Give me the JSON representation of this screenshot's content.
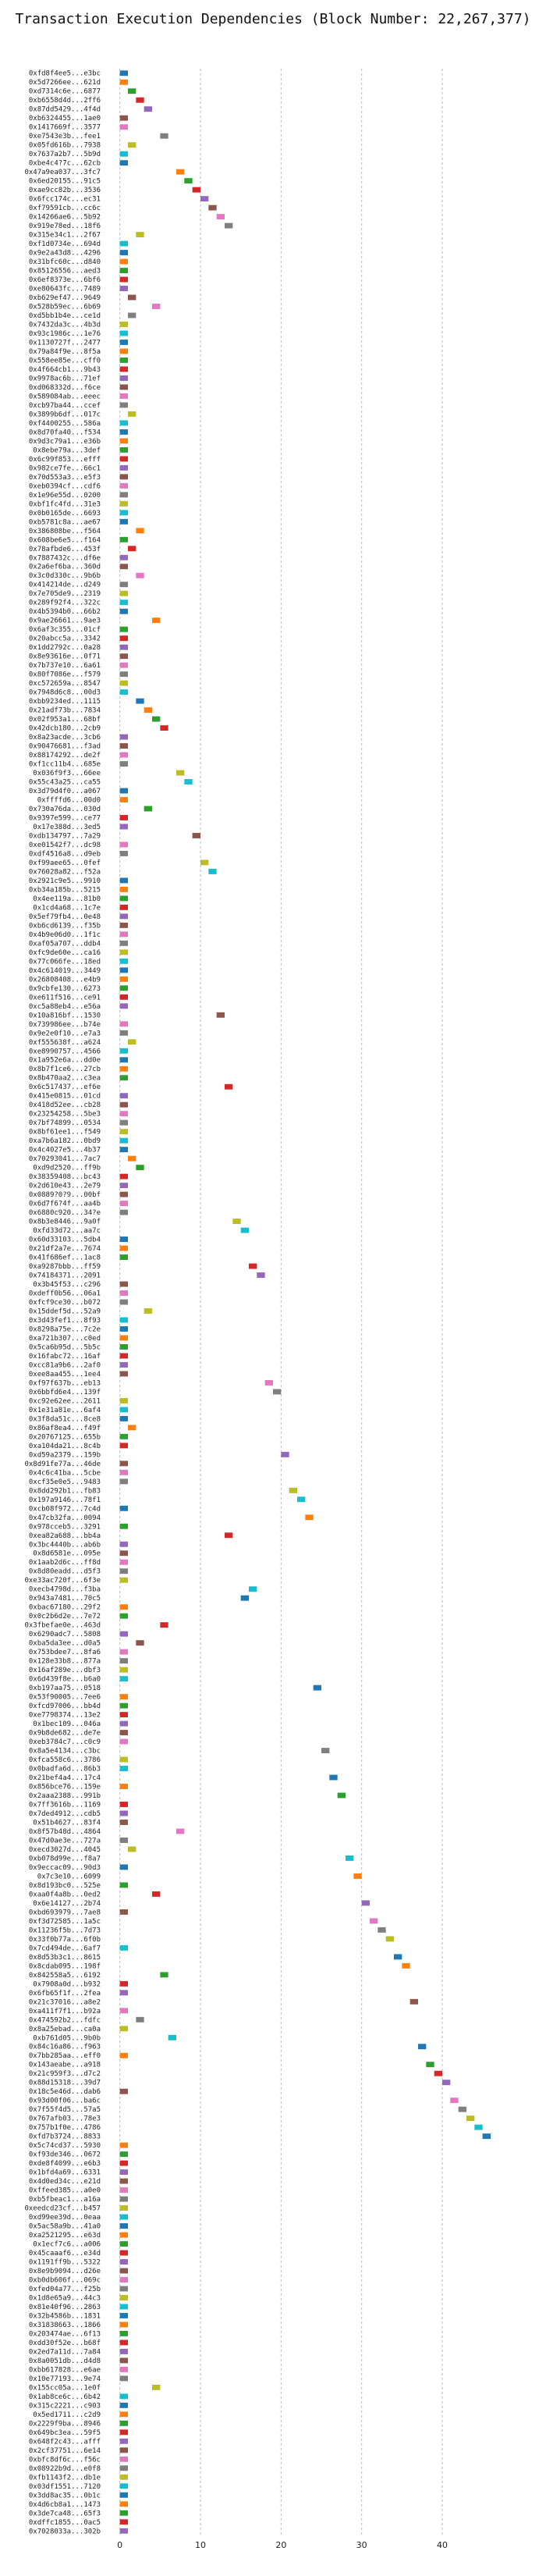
{
  "chart_data": {
    "type": "bar",
    "orientation": "horizontal",
    "title": "Transaction Execution Dependencies (Block Number: 22,267,377)",
    "xlabel": "",
    "ylabel": "",
    "xlim": [
      -2,
      49
    ],
    "xticks": [
      0,
      10,
      20,
      30,
      40
    ],
    "grid": true,
    "colors": [
      "#1f77b4",
      "#ff7f0e",
      "#2ca02c",
      "#d62728",
      "#9467bd",
      "#8c564b",
      "#e377c2",
      "#7f7f7f",
      "#bcbd22",
      "#17becf"
    ],
    "categories": [
      "0xfd8f4ee5...e3bc",
      "0x5d7266ee...621d",
      "0xd7314c6e...6877",
      "0xb6558d4d...2ff6",
      "0x87dd5429...4f4d",
      "0xb6324455...1ae0",
      "0x1417669f...3577",
      "0xe7543e3b...fee1",
      "0x05fd616b...7938",
      "0x7637a2b7...5b9d",
      "0xbe4c4?7c...62cb",
      "0x47a9ea037...3fc7",
      "0x6ed20155...91c5",
      "0xae9cc82b...3536",
      "0x6fcc174c...ec31",
      "0xf79591cb...cc6c",
      "0x14266ae6...5b92",
      "0x919e78ed...18f6",
      "0x315e34c1...2f67",
      "0xf1d0734e...694d",
      "0x9e2a43d8...4296",
      "0x31bfc60c...d840",
      "0x85126556...aed3",
      "0x6ef8373e...6bf6",
      "0xe80643fc...7489",
      "0xb629ef47...9649",
      "0x528b59ec...6b69",
      "0xd5bb1b4e...ce1d",
      "0x7432da3c...4b3d",
      "0x93c1986c...1e76",
      "0x1130727f...2477",
      "0x79a84f9e...8f5a",
      "0x558ee85e...cff0",
      "0x4f664cb1...9b43",
      "0x9978ac6b...71ef",
      "0xd068332d...f6ce",
      "0x589084ab...eeec",
      "0xcb97ba44...ccef",
      "0x3899b6df...017c",
      "0xf4400255...586a",
      "0x8d70fa40...f534",
      "0x9d3c79a1...e36b",
      "0x8ebe79a...3def",
      "0x6c99f853...efff",
      "0x982ce7fe...66c1",
      "0x70d553a3...e5f3",
      "0xeb0394cf...cdf6",
      "0x1e96e55d...0200",
      "0xbf1fc4fd...31e3",
      "0x0b0165de...6693",
      "0xb5781c8a...ae67",
      "0x386808be...f564",
      "0x608be6e5...f164",
      "0x78afbde6...453f",
      "0x7887432c...df6e",
      "0x2a6ef6ba...360d",
      "0x3c0d330c...9b6b",
      "0x414214de...d249",
      "0x7e705de9...2319",
      "0x289f92f4...322c",
      "0x4b5394b0...66b2",
      "0x9ae26661...9ae3",
      "0x6af3c355...01cf",
      "0x20abcc5a...3342",
      "0x1dd2792c...0a28",
      "0x8e93616e...0f71",
      "0x7b737e10...6a61",
      "0x80f7086e...f579",
      "0xc572659a...8547",
      "0x7948d6c8...00d3",
      "0xbb9234ed...1115",
      "0x21adf73b...7834",
      "0x02f953a1...68bf",
      "0x42dcb180...2cb9",
      "0x8a23acde...3cb6",
      "0x90476681...f3ad",
      "0x88174292...de2f",
      "0xf1cc11b4...685e",
      "0x036f9f3...66ee",
      "0x55c43a25...ca55",
      "0x3d79d4f0...a067",
      "0xffffd6...00d0",
      "0x730a76da...030d",
      "0x9397e599...ce77",
      "0x17e388d...3ed5",
      "0xdb134797...7a29",
      "0xe01542f7...dc98",
      "0xdf4516a8...d9eb",
      "0xf99aee65...0fef",
      "0x76028a82...f52a",
      "0x2921c9e5...9910",
      "0xb34a185b...5215",
      "0x4ee119a...81b0",
      "0x1cd4a68...1c7e",
      "0x5ef79fb4...0e48",
      "0xb6cd6139...f35b",
      "0x4b9e06d0...1f1c",
      "0xaf05a707...ddb4",
      "0xfc9de60e...ca16",
      "0x77c066fe...18ed",
      "0x4c614019...3449",
      "0x26808408...e4b9",
      "0x9cbfe130...6273",
      "0xe611f516...ce91",
      "0xc5a88eb4...e56a",
      "0x10a816bf...1530",
      "0x739986ee...b74e",
      "0x9e2e0f10...e7a3",
      "0xf555638f...a624",
      "0xe8990757...4566",
      "0x1a952e6a...dd0e",
      "0x8b7f1ce6...27cb",
      "0x8b470aa2...c3ea",
      "0x6c517437...ef6e",
      "0x415e0815...01cd",
      "0x418d52ee...cb28",
      "0x23254258...5be3",
      "0x7bf74899...0534",
      "0x8bf61ee1...f549",
      "0xa7b6a182...0bd9",
      "0x4c4027e5...4b37",
      "0x70293041...7ac7",
      "0xd9d2520...ff9b",
      "0x38359408...bc43",
      "0x2d610e43...2e79",
      "0x0889?0?9...00bf",
      "0x6d7f6?4f...aa4b",
      "0x6880c920...34?e",
      "0x8b3e8446...9a0f",
      "0xfd33d72...aa7c",
      "0x60d33103...5db4",
      "0x21df2a7e...7674",
      "0x41f686ef...1ac8",
      "0xa9287bbb...ff59",
      "0x74184371...2091",
      "0x3b45f53...c296",
      "0xdeff0b56...06a1",
      "0xfcf9ce30...b072",
      "0x15ddef5d...52a9",
      "0x3d43fef1...8f93",
      "0x8298a75e...7c2e",
      "0xa721b307...c0ed",
      "0x5ca6b95d...5b5c",
      "0x16fabc72...16af",
      "0xcc81a9b6...2af0",
      "0xee8aa455...1ee4",
      "0xf97f637b...eb13",
      "0x6bbfd6e4...139f",
      "0xc92e62ee...2611",
      "0x1e31a81e...6af4",
      "0x3f8da51c...8ce8",
      "0x86af8ea4...f49f",
      "0x20767125...655b",
      "0xa104da21...8c4b",
      "0xd59a2379...159b",
      "0x8d91fe77a...46de",
      "0x4c6c41ba...5cbe",
      "0xcf35e0e5...9483",
      "0x8dd292b1...fb83",
      "0x197a9146...78f1",
      "0xcb08f972...7c4d",
      "0x47cb32fa...0094",
      "0x978cceb5...3291",
      "0xea82a688...bb4a",
      "0x3bc4440b...ab6b",
      "0x8d6581e...095e",
      "0x1aab2d6c...ff8d",
      "0x8d80eadd...d5f3",
      "0xe33ac720f...6f3e",
      "0xecb4798d...f3ba",
      "0x943a7481...70c5",
      "0xbac67180...29f2",
      "0x0c2b6d2e...7e72",
      "0x3fbefae0e...463d",
      "0x6290adc7...5808",
      "0xba5da3ee...d0a5",
      "0x753bdee7...8fa6",
      "0x128e33b8...877a",
      "0x16af289e...dbf3",
      "0x6d439f8e...b6a0",
      "0xb197aa75...0518",
      "0x53f90005...7ee6",
      "0xfcd97006...bb4d",
      "0xe7798374...13e2",
      "0x1bec109...046a",
      "0x9b8de682...de7e",
      "0xeb3784c7...c0c9",
      "0x8a5e4134...c3bc",
      "0xfca558c6...3786",
      "0x0badfa6d...86b3",
      "0x21bef4a4...17c4",
      "0x856bce76...159e",
      "0x2aaa2388...991b",
      "0x7ff3616b...1169",
      "0x7ded4912...cdb5",
      "0x51b4627...83f4",
      "0x8f57b48d...4864",
      "0x47d0ae3e...727a",
      "0xecd3027d...4045",
      "0xb078d99e...f8a7",
      "0x9eccac09...90d3",
      "0x7c3e10...6099",
      "0x8d193bc0...525e",
      "0xaa0f4a8b...0ed2",
      "0x6e14127...2b74",
      "0xbd693979...7ae8",
      "0xf3d72585...1a5c",
      "0x11236f5b...7d73",
      "0x33f0b77a...6f0b",
      "0x7cd494de...6af7",
      "0x8d53b3c1...8615",
      "0x8cdab095...198f",
      "0x842558a5...6192",
      "0x7908a0d...b932",
      "0x6fb65f1f...2fea",
      "0x21c37016...a8e2",
      "0xa411f7f1...b92a",
      "0x474592b2...fdfc",
      "0x8a25ebad...ca0a",
      "0xb761d05...9b0b",
      "0x84c16a86...f963",
      "0x7bb285aa...eff0",
      "0x143aeabe...a918",
      "0x21c959f3...d7c2",
      "0x88d15318...39d7",
      "0x18c5e46d...dab6",
      "0x93d00f06...ba6c",
      "0x7f55f4d5...57a5",
      "0x767afb03...78e3",
      "0x757b1f0e...4786",
      "0xfd7b3724...8833",
      "0x5c74cd37...5930",
      "0xf93de346...0672",
      "0xde8f4099...e6b3",
      "0x1bfd4a69...6331",
      "0x4d0ed34c...e21d",
      "0xffeed385...a0e0",
      "0xb5fbeac1...a16a",
      "0xeedcd23cf...b457",
      "0xd99ee39d...0eaa",
      "0x5ac58a9b...41a0",
      "0xa2521295...e63d",
      "0x1ecf7c6...a006",
      "0x45caaaf6...e34d",
      "0x1191ff9b...5322",
      "0x8e9b9094...d26e",
      "0xb0db606f...069c",
      "0xfed04a77...f25b",
      "0x1d8e65a9...44c3",
      "0x81e40f96...2863",
      "0x32b4586b...1831",
      "0x31838663...1866",
      "0x203474ae...6f13",
      "0xdd30f52e...b68f",
      "0x2ed7a11d...7a84",
      "0x8a0051db...d4d8",
      "0xbb617828...e6ae",
      "0x10e77193...9e74",
      "0x155cc05a...1e0f",
      "0x1ab8ce6c...6b42",
      "0x315c2221...c903",
      "0x5ed1711...c2d9",
      "0x2229f9ba...8946",
      "0x649bc3ea...59f5",
      "0x648f2c43...afff",
      "0x2cf37751...6e14",
      "0xbfc8df6c...f56c",
      "0x08922b9d...e0f8",
      "0xfb1143f2...db1e",
      "0x03df1551...7120",
      "0x3dd8ac35...0b1c",
      "0x4d6cb8a1...1473",
      "0x3de7ca48...65f3",
      "0xdffc1855...0ac5",
      "0x7028033a...302b"
    ],
    "starts": [
      0,
      0,
      1,
      2,
      3,
      0,
      0,
      5,
      1,
      0,
      0,
      7,
      8,
      9,
      10,
      11,
      12,
      13,
      2,
      0,
      0,
      0,
      0,
      0,
      0,
      1,
      4,
      1,
      0,
      0,
      0,
      0,
      0,
      0,
      0,
      0,
      0,
      0,
      1,
      0,
      0,
      0,
      0,
      0,
      0,
      0,
      0,
      0,
      0,
      0,
      0,
      2,
      0,
      1,
      0,
      0,
      2,
      0,
      0,
      0,
      0,
      4,
      0,
      0,
      0,
      0,
      0,
      0,
      0,
      0,
      2,
      3,
      4,
      5,
      0,
      0,
      0,
      0,
      7,
      8,
      0,
      0,
      3,
      0,
      0,
      9,
      0,
      0,
      10,
      11,
      0,
      0,
      0,
      0,
      0,
      0,
      0,
      0,
      0,
      0,
      0,
      0,
      0,
      0,
      0,
      12,
      0,
      0,
      1,
      0,
      0,
      0,
      0,
      13,
      0,
      0,
      0,
      0,
      0,
      0,
      0,
      1,
      2,
      0,
      0,
      0,
      0,
      0,
      14,
      15,
      0,
      0,
      0,
      16,
      17,
      0,
      0,
      0,
      3,
      0,
      0,
      0,
      0,
      0,
      0,
      0,
      18,
      19,
      0,
      0,
      0,
      1,
      0,
      0,
      20,
      0,
      0,
      0,
      21,
      22,
      0,
      23,
      0,
      13,
      0,
      0,
      0,
      0,
      0,
      16,
      15,
      0,
      0,
      5,
      0,
      2,
      0,
      0,
      0,
      0,
      24,
      0,
      0,
      0,
      0,
      0,
      0,
      25,
      0,
      0,
      26,
      0,
      27,
      0,
      0,
      0,
      7,
      0,
      1,
      28,
      0,
      29,
      0,
      4,
      30,
      0,
      31,
      32,
      33,
      0,
      34,
      35,
      5,
      0,
      0,
      36,
      0,
      2,
      0,
      6,
      37,
      0,
      38,
      39,
      40,
      0,
      41,
      42,
      43,
      44,
      45,
      0,
      0,
      0,
      0,
      0,
      0,
      0,
      0,
      0,
      0,
      0,
      0,
      0,
      0,
      0,
      0,
      0,
      0,
      0,
      0,
      0,
      0,
      0,
      0,
      0,
      0,
      0,
      4
    ],
    "durations": [
      1,
      1,
      1,
      1,
      1,
      1,
      1,
      1,
      1,
      1,
      1,
      1,
      1,
      1,
      1,
      1,
      1,
      1,
      1,
      1,
      1,
      1,
      1,
      1,
      1,
      1,
      1,
      1,
      1,
      1,
      1,
      1,
      1,
      1,
      1,
      1,
      1,
      1,
      1,
      1,
      1,
      1,
      1,
      1,
      1,
      1,
      1,
      1,
      1,
      1,
      1,
      1,
      1,
      1,
      1,
      1,
      1,
      1,
      1,
      1,
      1,
      1,
      1,
      1,
      1,
      1,
      1,
      1,
      1,
      1,
      1,
      1,
      1,
      1,
      1,
      1,
      1,
      1,
      1,
      1,
      1,
      1,
      1,
      1,
      1,
      1,
      1,
      1,
      1,
      1,
      1,
      1,
      1,
      1,
      1,
      1,
      1,
      1,
      1,
      1,
      1,
      1,
      1,
      1,
      1,
      1,
      1,
      1,
      1,
      1,
      1,
      1,
      1,
      1,
      1,
      1,
      1,
      1,
      1,
      1,
      1,
      1,
      1,
      1,
      1,
      1,
      1,
      1,
      1,
      1,
      1,
      1,
      1,
      1,
      1,
      1,
      1,
      1,
      1,
      1,
      1,
      1,
      1,
      1,
      1,
      1,
      1,
      1,
      1,
      1,
      1,
      1,
      1,
      1,
      1,
      1,
      1,
      1,
      1,
      1,
      1,
      1,
      1,
      1,
      1,
      1,
      1,
      1,
      1,
      1,
      1,
      1,
      1,
      1,
      1,
      1,
      1,
      1,
      1,
      1,
      1,
      1,
      1,
      1,
      1,
      1,
      1,
      1,
      1,
      1,
      1,
      1,
      1,
      1,
      1,
      1,
      1,
      1,
      1,
      1,
      1,
      1,
      1,
      1,
      1,
      1,
      1,
      1,
      1,
      1,
      1,
      1,
      1,
      1,
      1,
      1,
      1,
      1,
      1,
      1,
      1,
      1,
      1,
      1,
      1,
      1,
      1,
      1,
      1,
      1,
      1,
      1,
      1,
      1,
      1,
      1,
      1,
      1,
      1,
      1,
      1,
      1,
      1,
      1,
      1,
      1,
      1,
      1,
      1,
      1,
      1,
      1,
      1,
      1,
      1,
      1
    ]
  }
}
